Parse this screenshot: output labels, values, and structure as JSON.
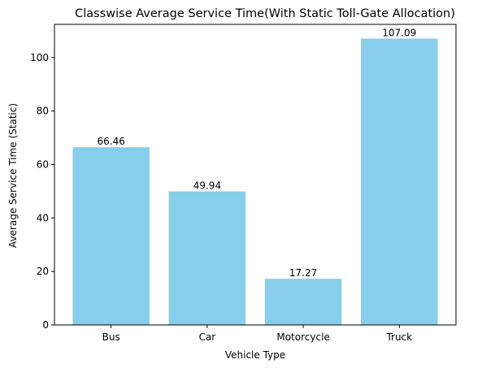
{
  "chart_data": {
    "type": "bar",
    "title": "Classwise Average Service Time(With Static Toll-Gate Allocation)",
    "xlabel": "Vehicle Type",
    "ylabel": "Average Service Time (Static)",
    "categories": [
      "Bus",
      "Car",
      "Motorcycle",
      "Truck"
    ],
    "values": [
      66.46,
      49.94,
      17.27,
      107.09
    ],
    "value_labels": [
      "66.46",
      "49.94",
      "17.27",
      "107.09"
    ],
    "yticks": [
      0,
      20,
      40,
      60,
      80,
      100
    ],
    "ylim": [
      0,
      112.4
    ],
    "bar_color": "#87ceeb",
    "grid": false,
    "legend": "none"
  }
}
